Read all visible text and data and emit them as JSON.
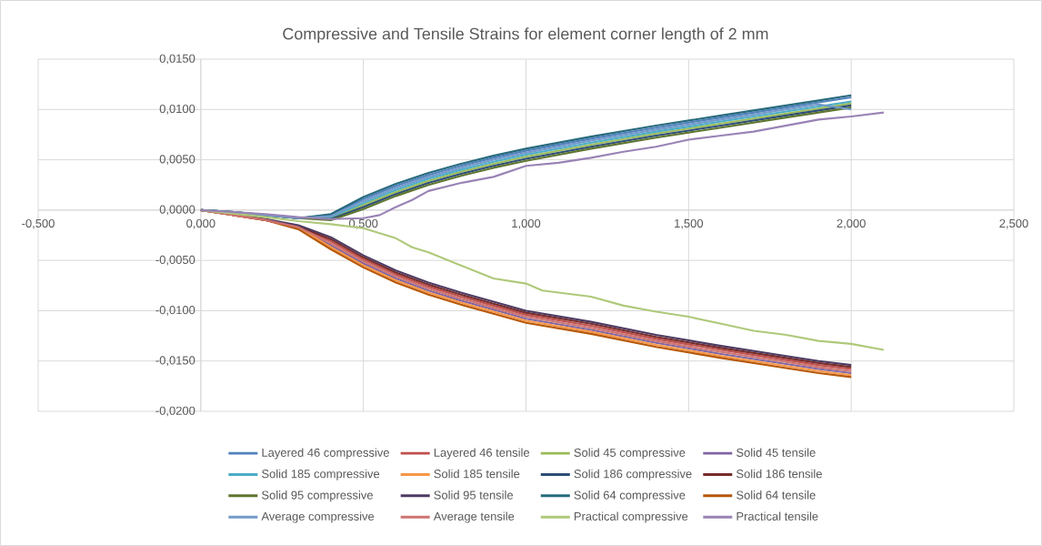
{
  "chart_data": {
    "type": "line",
    "title": "Compressive  and  Tensile Strains for element corner length of 2 mm",
    "x": [
      0,
      0.1,
      0.2,
      0.3,
      0.4,
      0.5,
      0.6,
      0.7,
      0.8,
      0.9,
      1.0,
      1.2,
      1.4,
      1.6,
      1.8,
      1.9,
      2.0
    ],
    "xlim": [
      -0.5,
      2.5
    ],
    "xticks": [
      {
        "value": -0.5,
        "label": "-0,500"
      },
      {
        "value": 0,
        "label": "0,000"
      },
      {
        "value": 0.5,
        "label": "0,500"
      },
      {
        "value": 1.0,
        "label": "1,000"
      },
      {
        "value": 1.5,
        "label": "1,500"
      },
      {
        "value": 2.0,
        "label": "2,000"
      },
      {
        "value": 2.5,
        "label": "2,500"
      }
    ],
    "ylim": [
      -0.02,
      0.015
    ],
    "yticks": [
      {
        "value": 0.015,
        "label": "0,0150"
      },
      {
        "value": 0.01,
        "label": "0,0100"
      },
      {
        "value": 0.005,
        "label": "0,0050"
      },
      {
        "value": 0,
        "label": "0,0000"
      },
      {
        "value": -0.005,
        "label": "-0,0050"
      },
      {
        "value": -0.01,
        "label": "-0,0100"
      },
      {
        "value": -0.015,
        "label": "-0,0150"
      },
      {
        "value": -0.02,
        "label": "-0,0200"
      }
    ],
    "grid": true,
    "legend": "bottom",
    "series": [
      {
        "name": "Layered  46 compressive",
        "color": "#4f81bd",
        "values": [
          0,
          -0.0002,
          -0.0005,
          -0.0008,
          -0.0005,
          0.0011,
          0.0024,
          0.0035,
          0.0044,
          0.0052,
          0.0059,
          0.0071,
          0.0082,
          0.0092,
          0.0102,
          0.0107,
          0.0112
        ]
      },
      {
        "name": "Layered  46 tensile",
        "color": "#c0504d",
        "values": [
          0,
          -0.0005,
          -0.001,
          -0.0017,
          -0.0031,
          -0.0049,
          -0.0064,
          -0.0076,
          -0.0086,
          -0.0095,
          -0.0104,
          -0.0115,
          -0.0128,
          -0.0139,
          -0.0149,
          -0.0154,
          -0.0158
        ]
      },
      {
        "name": "Solid 45 compressive",
        "color": "#9bbb59",
        "values": [
          0,
          -0.0002,
          -0.0005,
          -0.0008,
          -0.0008,
          0.0005,
          0.0018,
          0.0029,
          0.0038,
          0.0046,
          0.0053,
          0.0065,
          0.0076,
          0.0086,
          0.0096,
          0.0101,
          0.0106
        ]
      },
      {
        "name": "Solid 45 tensile",
        "color": "#8064a2",
        "values": [
          0,
          -0.0005,
          -0.001,
          -0.0017,
          -0.0035,
          -0.0053,
          -0.0068,
          -0.008,
          -0.009,
          -0.0099,
          -0.0108,
          -0.0119,
          -0.0132,
          -0.0143,
          -0.0153,
          -0.0158,
          -0.0162
        ]
      },
      {
        "name": "Solid 185 compressive",
        "color": "#4bacc6",
        "values": [
          0,
          -0.0002,
          -0.0005,
          -0.0008,
          -0.0007,
          0.0007,
          0.002,
          0.0031,
          0.004,
          0.0048,
          0.0055,
          0.0067,
          0.0078,
          0.0088,
          0.0098,
          0.0103,
          0.0108
        ]
      },
      {
        "name": "Solid 185  tensile",
        "color": "#f79646",
        "values": [
          0,
          -0.0005,
          -0.001,
          -0.0017,
          -0.0037,
          -0.0055,
          -0.007,
          -0.0082,
          -0.0092,
          -0.0101,
          -0.011,
          -0.0121,
          -0.0134,
          -0.0145,
          -0.0155,
          -0.016,
          -0.0164
        ]
      },
      {
        "name": "Solid 186 compressive",
        "color": "#2c4d75",
        "values": [
          0,
          -0.0002,
          -0.0005,
          -0.0008,
          -0.0009,
          0.0003,
          0.0016,
          0.0027,
          0.0036,
          0.0044,
          0.0051,
          0.0063,
          0.0074,
          0.0084,
          0.0094,
          0.0099,
          0.0104
        ]
      },
      {
        "name": "Solid 186 tensile",
        "color": "#772c2a",
        "values": [
          0,
          -0.0004,
          -0.001,
          -0.0016,
          -0.0029,
          -0.0047,
          -0.0062,
          -0.0074,
          -0.0084,
          -0.0093,
          -0.0102,
          -0.0113,
          -0.0126,
          -0.0137,
          -0.0147,
          -0.0152,
          -0.0156
        ]
      },
      {
        "name": "Solid 95 compressive",
        "color": "#5f7530",
        "values": [
          0,
          -0.0002,
          -0.0005,
          -0.0008,
          -0.001,
          0.0001,
          0.0014,
          0.0025,
          0.0034,
          0.0042,
          0.0049,
          0.0061,
          0.0072,
          0.0082,
          0.0092,
          0.0097,
          0.0102
        ]
      },
      {
        "name": "Solid 95 tensile",
        "color": "#4d3b62",
        "values": [
          0,
          -0.0004,
          -0.0009,
          -0.0015,
          -0.0027,
          -0.0045,
          -0.006,
          -0.0072,
          -0.0082,
          -0.0091,
          -0.01,
          -0.0111,
          -0.0124,
          -0.0135,
          -0.0145,
          -0.015,
          -0.0154
        ]
      },
      {
        "name": "Solid 64 compressive",
        "color": "#276a7c",
        "values": [
          0,
          -0.0002,
          -0.0005,
          -0.0008,
          -0.0004,
          0.0013,
          0.0026,
          0.0037,
          0.0046,
          0.0054,
          0.0061,
          0.0073,
          0.0084,
          0.0094,
          0.0104,
          0.0109,
          0.0114
        ]
      },
      {
        "name": "Solid 64 tensile",
        "color": "#b65708",
        "values": [
          0,
          -0.0005,
          -0.001,
          -0.0019,
          -0.0039,
          -0.0057,
          -0.0072,
          -0.0084,
          -0.0094,
          -0.0103,
          -0.0112,
          -0.0123,
          -0.0136,
          -0.0147,
          -0.0157,
          -0.0162,
          -0.0166
        ]
      },
      {
        "name": "Average  compressive",
        "color": "#729aca",
        "values": [
          0,
          -0.0002,
          -0.0005,
          -0.0008,
          -0.0006,
          0.0009,
          0.0022,
          0.0033,
          0.0042,
          0.005,
          0.0057,
          0.0069,
          0.008,
          0.009,
          0.01,
          0.0105,
          0.01
        ]
      },
      {
        "name": "Average  tensile",
        "color": "#cd7371",
        "values": [
          0,
          -0.0005,
          -0.001,
          -0.0017,
          -0.0033,
          -0.0051,
          -0.0066,
          -0.0078,
          -0.0088,
          -0.0097,
          -0.0106,
          -0.0117,
          -0.013,
          -0.0141,
          -0.0151,
          -0.0156,
          -0.016
        ]
      },
      {
        "name": "Practical compressive",
        "color": "#afc97a",
        "x": [
          0,
          0.2,
          0.3,
          0.4,
          0.5,
          0.55,
          0.6,
          0.65,
          0.7,
          0.8,
          0.9,
          1.0,
          1.05,
          1.2,
          1.3,
          1.4,
          1.5,
          1.6,
          1.7,
          1.8,
          1.9,
          2.0,
          2.1
        ],
        "values": [
          0,
          -0.0007,
          -0.0011,
          -0.0014,
          -0.0018,
          -0.0023,
          -0.0028,
          -0.0037,
          -0.0042,
          -0.0055,
          -0.0068,
          -0.0073,
          -0.008,
          -0.0086,
          -0.0095,
          -0.0101,
          -0.0106,
          -0.0113,
          -0.012,
          -0.0124,
          -0.013,
          -0.0133,
          -0.0139
        ]
      },
      {
        "name": "Practical tensile",
        "color": "#9983b5",
        "x": [
          0,
          0.2,
          0.3,
          0.4,
          0.5,
          0.55,
          0.6,
          0.65,
          0.7,
          0.8,
          0.9,
          1.0,
          1.1,
          1.2,
          1.3,
          1.4,
          1.5,
          1.6,
          1.7,
          1.8,
          1.9,
          2.0,
          2.1
        ],
        "values": [
          0,
          -0.0004,
          -0.0007,
          -0.0009,
          -0.0008,
          -0.0005,
          0.0003,
          0.001,
          0.0019,
          0.0027,
          0.0033,
          0.0044,
          0.0047,
          0.0052,
          0.0058,
          0.0063,
          0.007,
          0.0074,
          0.0078,
          0.0084,
          0.009,
          0.0093,
          0.0097
        ]
      }
    ]
  }
}
